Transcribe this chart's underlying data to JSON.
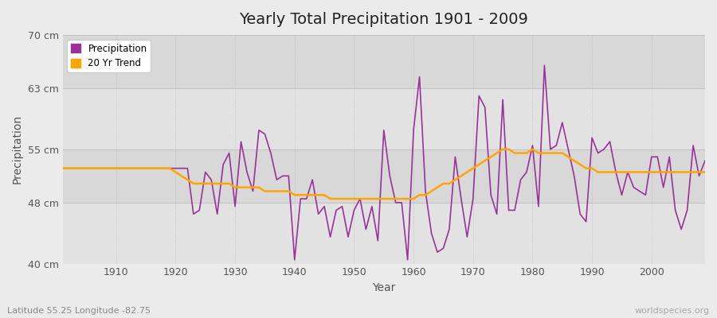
{
  "title": "Yearly Total Precipitation 1901 - 2009",
  "xlabel": "Year",
  "ylabel": "Precipitation",
  "subtitle": "Latitude 55.25 Longitude -82.75",
  "watermark": "worldspecies.org",
  "xlim": [
    1901,
    2009
  ],
  "ylim": [
    40,
    70
  ],
  "yticks": [
    40,
    48,
    55,
    63,
    70
  ],
  "ytick_labels": [
    "40 cm",
    "48 cm",
    "55 cm",
    "63 cm",
    "70 cm"
  ],
  "xticks": [
    1910,
    1920,
    1930,
    1940,
    1950,
    1960,
    1970,
    1980,
    1990,
    2000
  ],
  "precip_color": "#993399",
  "trend_color": "#FFA500",
  "bg_color": "#EBEBEB",
  "band_colors": [
    "#E8E8E8",
    "#DCDCDC"
  ],
  "years": [
    1901,
    1902,
    1903,
    1904,
    1905,
    1906,
    1907,
    1908,
    1909,
    1910,
    1911,
    1912,
    1913,
    1914,
    1915,
    1916,
    1917,
    1918,
    1919,
    1920,
    1921,
    1922,
    1923,
    1924,
    1925,
    1926,
    1927,
    1928,
    1929,
    1930,
    1931,
    1932,
    1933,
    1934,
    1935,
    1936,
    1937,
    1938,
    1939,
    1940,
    1941,
    1942,
    1943,
    1944,
    1945,
    1946,
    1947,
    1948,
    1949,
    1950,
    1951,
    1952,
    1953,
    1954,
    1955,
    1956,
    1957,
    1958,
    1959,
    1960,
    1961,
    1962,
    1963,
    1964,
    1965,
    1966,
    1967,
    1968,
    1969,
    1970,
    1971,
    1972,
    1973,
    1974,
    1975,
    1976,
    1977,
    1978,
    1979,
    1980,
    1981,
    1982,
    1983,
    1984,
    1985,
    1986,
    1987,
    1988,
    1989,
    1990,
    1991,
    1992,
    1993,
    1994,
    1995,
    1996,
    1997,
    1998,
    1999,
    2000,
    2001,
    2002,
    2003,
    2004,
    2005,
    2006,
    2007,
    2008,
    2009
  ],
  "precip": [
    52.5,
    52.5,
    52.5,
    52.5,
    52.5,
    52.5,
    52.5,
    52.5,
    52.5,
    52.5,
    52.5,
    52.5,
    52.5,
    52.5,
    52.5,
    52.5,
    52.5,
    52.5,
    52.5,
    52.5,
    52.5,
    52.5,
    46.5,
    47.0,
    52.0,
    51.0,
    46.5,
    53.0,
    54.5,
    47.5,
    56.0,
    52.0,
    49.5,
    57.5,
    57.0,
    54.5,
    51.0,
    51.5,
    51.5,
    40.5,
    48.5,
    48.5,
    51.0,
    46.5,
    47.5,
    43.5,
    47.0,
    47.5,
    43.5,
    47.0,
    48.5,
    44.5,
    47.5,
    43.0,
    57.5,
    51.5,
    48.0,
    48.0,
    40.5,
    57.5,
    64.5,
    49.5,
    44.0,
    41.5,
    42.0,
    44.5,
    54.0,
    48.5,
    43.5,
    48.5,
    62.0,
    60.5,
    49.0,
    46.5,
    61.5,
    47.0,
    47.0,
    51.0,
    52.0,
    55.5,
    47.5,
    66.0,
    55.0,
    55.5,
    58.5,
    55.0,
    51.5,
    46.5,
    45.5,
    56.5,
    54.5,
    55.0,
    56.0,
    52.0,
    49.0,
    52.0,
    50.0,
    49.5,
    49.0,
    54.0,
    54.0,
    50.0,
    54.0,
    47.0,
    44.5,
    47.0,
    55.5,
    51.5,
    53.5
  ],
  "trend": [
    52.5,
    52.5,
    52.5,
    52.5,
    52.5,
    52.5,
    52.5,
    52.5,
    52.5,
    52.5,
    52.5,
    52.5,
    52.5,
    52.5,
    52.5,
    52.5,
    52.5,
    52.5,
    52.5,
    52.0,
    51.5,
    51.0,
    50.5,
    50.5,
    50.5,
    50.5,
    50.5,
    50.5,
    50.5,
    50.0,
    50.0,
    50.0,
    50.0,
    50.0,
    49.5,
    49.5,
    49.5,
    49.5,
    49.5,
    49.0,
    49.0,
    49.0,
    49.0,
    49.0,
    49.0,
    48.5,
    48.5,
    48.5,
    48.5,
    48.5,
    48.5,
    48.5,
    48.5,
    48.5,
    48.5,
    48.5,
    48.5,
    48.5,
    48.5,
    48.5,
    49.0,
    49.0,
    49.5,
    50.0,
    50.5,
    50.5,
    51.0,
    51.5,
    52.0,
    52.5,
    53.0,
    53.5,
    54.0,
    54.5,
    55.0,
    55.0,
    54.5,
    54.5,
    54.5,
    55.0,
    54.5,
    54.5,
    54.5,
    54.5,
    54.5,
    54.0,
    53.5,
    53.0,
    52.5,
    52.5,
    52.0,
    52.0,
    52.0,
    52.0,
    52.0,
    52.0,
    52.0,
    52.0,
    52.0,
    52.0,
    52.0,
    52.0,
    52.0,
    52.0,
    52.0,
    52.0,
    52.0,
    52.0,
    52.0
  ]
}
